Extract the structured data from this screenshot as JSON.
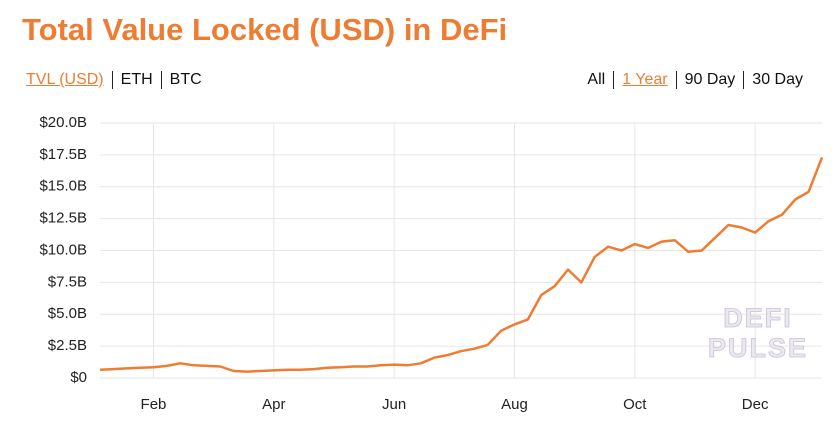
{
  "chart_data": {
    "type": "line",
    "title": "Total Value Locked (USD) in DeFi",
    "tabs": [
      "TVL (USD)",
      "ETH",
      "BTC"
    ],
    "active_tab": 0,
    "ranges": [
      "All",
      "1 Year",
      "90 Day",
      "30 Day"
    ],
    "active_range": 1,
    "watermark": [
      "DEFI",
      "PULSE"
    ],
    "categories": [
      null,
      null,
      null,
      null,
      "Feb",
      null,
      null,
      null,
      null,
      null,
      null,
      null,
      null,
      "Apr",
      null,
      null,
      null,
      null,
      null,
      null,
      null,
      null,
      "Jun",
      null,
      null,
      null,
      null,
      null,
      null,
      null,
      null,
      "Aug",
      null,
      null,
      null,
      null,
      null,
      null,
      null,
      null,
      "Oct",
      null,
      null,
      null,
      null,
      null,
      null,
      null,
      null,
      "Dec",
      null,
      null,
      null,
      null,
      null
    ],
    "values": [
      0.65,
      0.7,
      0.75,
      0.8,
      0.85,
      0.95,
      1.15,
      1.0,
      0.95,
      0.9,
      0.55,
      0.5,
      0.55,
      0.6,
      0.65,
      0.65,
      0.7,
      0.8,
      0.85,
      0.9,
      0.9,
      1.0,
      1.05,
      1.0,
      1.15,
      1.6,
      1.8,
      2.1,
      2.3,
      2.6,
      3.7,
      4.2,
      4.6,
      6.5,
      7.2,
      8.5,
      7.5,
      9.5,
      10.3,
      10.0,
      10.5,
      10.2,
      10.7,
      10.8,
      9.9,
      10.0,
      11.0,
      12.0,
      11.8,
      11.4,
      12.3,
      12.8,
      14.0,
      14.6,
      17.3
    ],
    "color": "#ee7d33",
    "ylim": [
      0,
      20
    ],
    "yticks": [
      {
        "value": 0,
        "label": "$0"
      },
      {
        "value": 2.5,
        "label": "$2.5B"
      },
      {
        "value": 5,
        "label": "$5.0B"
      },
      {
        "value": 7.5,
        "label": "$7.5B"
      },
      {
        "value": 10,
        "label": "$10.0B"
      },
      {
        "value": 12.5,
        "label": "$12.5B"
      },
      {
        "value": 15,
        "label": "$15.0B"
      },
      {
        "value": 17.5,
        "label": "$17.5B"
      },
      {
        "value": 20,
        "label": "$20.0B"
      }
    ],
    "grid": true
  }
}
